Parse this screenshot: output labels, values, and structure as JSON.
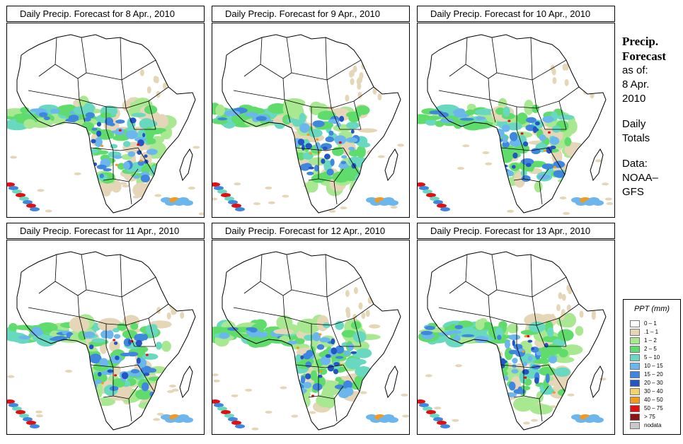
{
  "panels": [
    {
      "title": "Daily Precip. Forecast for  8 Apr., 2010",
      "seed": 11
    },
    {
      "title": "Daily Precip. Forecast for  9 Apr., 2010",
      "seed": 23
    },
    {
      "title": "Daily Precip. Forecast for  10 Apr., 2010",
      "seed": 37
    },
    {
      "title": "Daily Precip. Forecast for  11 Apr., 2010",
      "seed": 41
    },
    {
      "title": "Daily Precip. Forecast for  12 Apr., 2010",
      "seed": 53
    },
    {
      "title": "Daily Precip. Forecast for  13 Apr., 2010",
      "seed": 67
    }
  ],
  "side": {
    "heading1": "Precip.",
    "heading2": "Forecast",
    "asof": "as of:",
    "date1": "8 Apr.",
    "date2": "2010",
    "daily1": "Daily",
    "daily2": "Totals",
    "data1": "Data:",
    "data2": "NOAA–",
    "data3": "GFS"
  },
  "legend": {
    "title": "PPT (mm)",
    "items": [
      {
        "label": "0 – 1",
        "color": "#ffffff"
      },
      {
        "label": ".1 – 1",
        "color": "#e6d6b8"
      },
      {
        "label": "1 – 2",
        "color": "#a8e890"
      },
      {
        "label": "2 – 5",
        "color": "#5fdc6b"
      },
      {
        "label": "5 – 10",
        "color": "#68d8c0"
      },
      {
        "label": "10 – 15",
        "color": "#6cb6ee"
      },
      {
        "label": "15 – 20",
        "color": "#3f86de"
      },
      {
        "label": "20 – 30",
        "color": "#2356c4"
      },
      {
        "label": "30 – 40",
        "color": "#f2d36a"
      },
      {
        "label": "40 – 50",
        "color": "#f09a22"
      },
      {
        "label": "50 – 75",
        "color": "#e01010"
      },
      {
        "label": "> 75",
        "color": "#8c1414"
      },
      {
        "label": "nodata",
        "color": "#c8c8c8"
      }
    ]
  },
  "map_colors": {
    "border": "#000000",
    "ocean": "#ffffff"
  }
}
